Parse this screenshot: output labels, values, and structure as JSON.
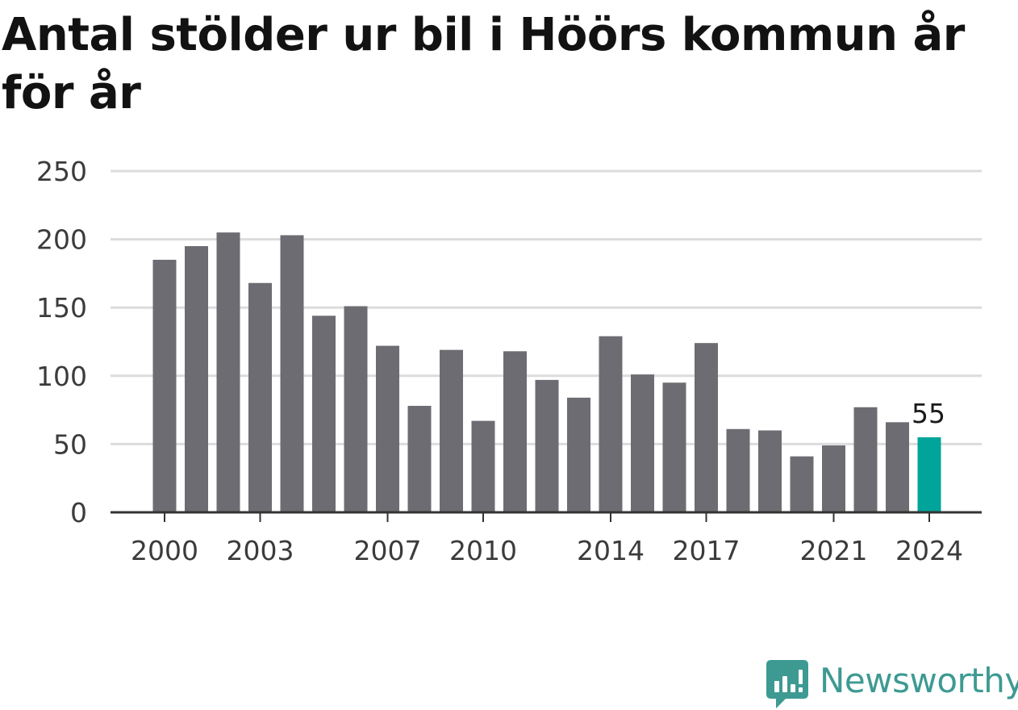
{
  "title": "Antal stölder ur bil i Höörs kommun år för år",
  "brand": {
    "name": "Newsworthy",
    "icon": "newsworthy-logo-icon",
    "color": "#3d9a92"
  },
  "colors": {
    "bar": "#6d6c72",
    "highlight": "#00a49a",
    "grid": "#dcdcdc",
    "axis": "#333333"
  },
  "chart_data": {
    "type": "bar",
    "title": "Antal stölder ur bil i Höörs kommun år för år",
    "xlabel": "",
    "ylabel": "",
    "ylim": [
      0,
      250
    ],
    "yticks": [
      0,
      50,
      100,
      150,
      200,
      250
    ],
    "categories": [
      "2000",
      "2001",
      "2002",
      "2003",
      "2004",
      "2005",
      "2006",
      "2007",
      "2008",
      "2009",
      "2010",
      "2011",
      "2012",
      "2013",
      "2014",
      "2015",
      "2016",
      "2017",
      "2018",
      "2019",
      "2020",
      "2021",
      "2022",
      "2023",
      "2024"
    ],
    "values": [
      185,
      195,
      205,
      168,
      203,
      144,
      151,
      122,
      78,
      119,
      67,
      118,
      97,
      84,
      129,
      101,
      95,
      124,
      61,
      60,
      41,
      49,
      77,
      66,
      55
    ],
    "xtick_labels": [
      "2000",
      "2003",
      "2007",
      "2010",
      "2014",
      "2017",
      "2021",
      "2024"
    ],
    "highlight": "2024",
    "annotations": [
      {
        "category": "2024",
        "text": "55"
      }
    ],
    "grid": true,
    "legend": "none"
  }
}
